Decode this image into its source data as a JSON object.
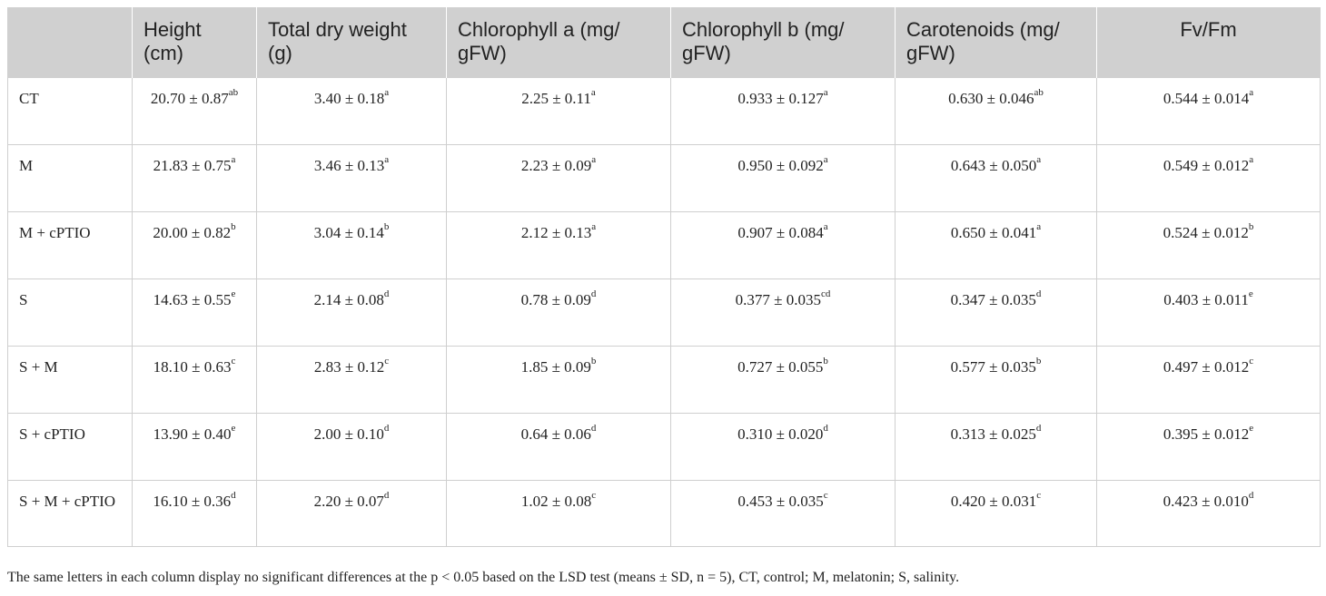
{
  "table": {
    "headers": [
      "",
      "Height (cm)",
      "Total dry weight (g)",
      "Chlorophyll a (mg/ gFW)",
      "Chlorophyll b (mg/ gFW)",
      "Carotenoids (mg/ gFW)",
      "Fv/Fm"
    ],
    "rows": [
      {
        "label": "CT",
        "cells": [
          {
            "v": "20.70 ± 0.87",
            "s": "ab"
          },
          {
            "v": "3.40 ± 0.18",
            "s": "a"
          },
          {
            "v": "2.25 ± 0.11",
            "s": "a"
          },
          {
            "v": "0.933 ± 0.127",
            "s": "a"
          },
          {
            "v": "0.630 ± 0.046",
            "s": "ab"
          },
          {
            "v": "0.544 ± 0.014",
            "s": "a"
          }
        ]
      },
      {
        "label": "M",
        "cells": [
          {
            "v": "21.83 ± 0.75",
            "s": "a"
          },
          {
            "v": "3.46 ± 0.13",
            "s": "a"
          },
          {
            "v": "2.23 ± 0.09",
            "s": "a"
          },
          {
            "v": "0.950 ± 0.092",
            "s": "a"
          },
          {
            "v": "0.643 ± 0.050",
            "s": "a"
          },
          {
            "v": "0.549 ± 0.012",
            "s": "a"
          }
        ]
      },
      {
        "label": "M + cPTIO",
        "cells": [
          {
            "v": "20.00 ± 0.82",
            "s": "b"
          },
          {
            "v": "3.04 ± 0.14",
            "s": "b"
          },
          {
            "v": "2.12 ± 0.13",
            "s": "a"
          },
          {
            "v": "0.907 ± 0.084",
            "s": "a"
          },
          {
            "v": "0.650 ± 0.041",
            "s": "a"
          },
          {
            "v": "0.524 ± 0.012",
            "s": "b"
          }
        ]
      },
      {
        "label": "S",
        "cells": [
          {
            "v": "14.63 ± 0.55",
            "s": "e"
          },
          {
            "v": "2.14 ± 0.08",
            "s": "d"
          },
          {
            "v": "0.78 ± 0.09",
            "s": "d"
          },
          {
            "v": "0.377 ± 0.035",
            "s": "cd"
          },
          {
            "v": "0.347 ± 0.035",
            "s": "d"
          },
          {
            "v": "0.403 ± 0.011",
            "s": "e"
          }
        ]
      },
      {
        "label": "S + M",
        "cells": [
          {
            "v": "18.10 ± 0.63",
            "s": "c"
          },
          {
            "v": "2.83 ± 0.12",
            "s": "c"
          },
          {
            "v": "1.85 ± 0.09",
            "s": "b"
          },
          {
            "v": "0.727 ± 0.055",
            "s": "b"
          },
          {
            "v": "0.577 ± 0.035",
            "s": "b"
          },
          {
            "v": "0.497 ± 0.012",
            "s": "c"
          }
        ]
      },
      {
        "label": "S + cPTIO",
        "cells": [
          {
            "v": "13.90 ± 0.40",
            "s": "e"
          },
          {
            "v": "2.00 ± 0.10",
            "s": "d"
          },
          {
            "v": "0.64 ± 0.06",
            "s": "d"
          },
          {
            "v": "0.310 ± 0.020",
            "s": "d"
          },
          {
            "v": "0.313 ± 0.025",
            "s": "d"
          },
          {
            "v": "0.395 ± 0.012",
            "s": "e"
          }
        ]
      },
      {
        "label": "S + M + cPTIO",
        "cells": [
          {
            "v": "16.10 ± 0.36",
            "s": "d"
          },
          {
            "v": "2.20 ± 0.07",
            "s": "d"
          },
          {
            "v": "1.02 ± 0.08",
            "s": "c"
          },
          {
            "v": "0.453 ± 0.035",
            "s": "c"
          },
          {
            "v": "0.420 ± 0.031",
            "s": "c"
          },
          {
            "v": "0.423 ± 0.010",
            "s": "d"
          }
        ]
      }
    ]
  },
  "footnote": "The same letters in each column display no significant differences at the p < 0.05 based on the LSD test (means ± SD, n = 5), CT, control; M, melatonin; S, salinity.",
  "colors": {
    "header_bg": "#d0d0d0",
    "grid": "#cfcfcf",
    "text": "#222222"
  }
}
